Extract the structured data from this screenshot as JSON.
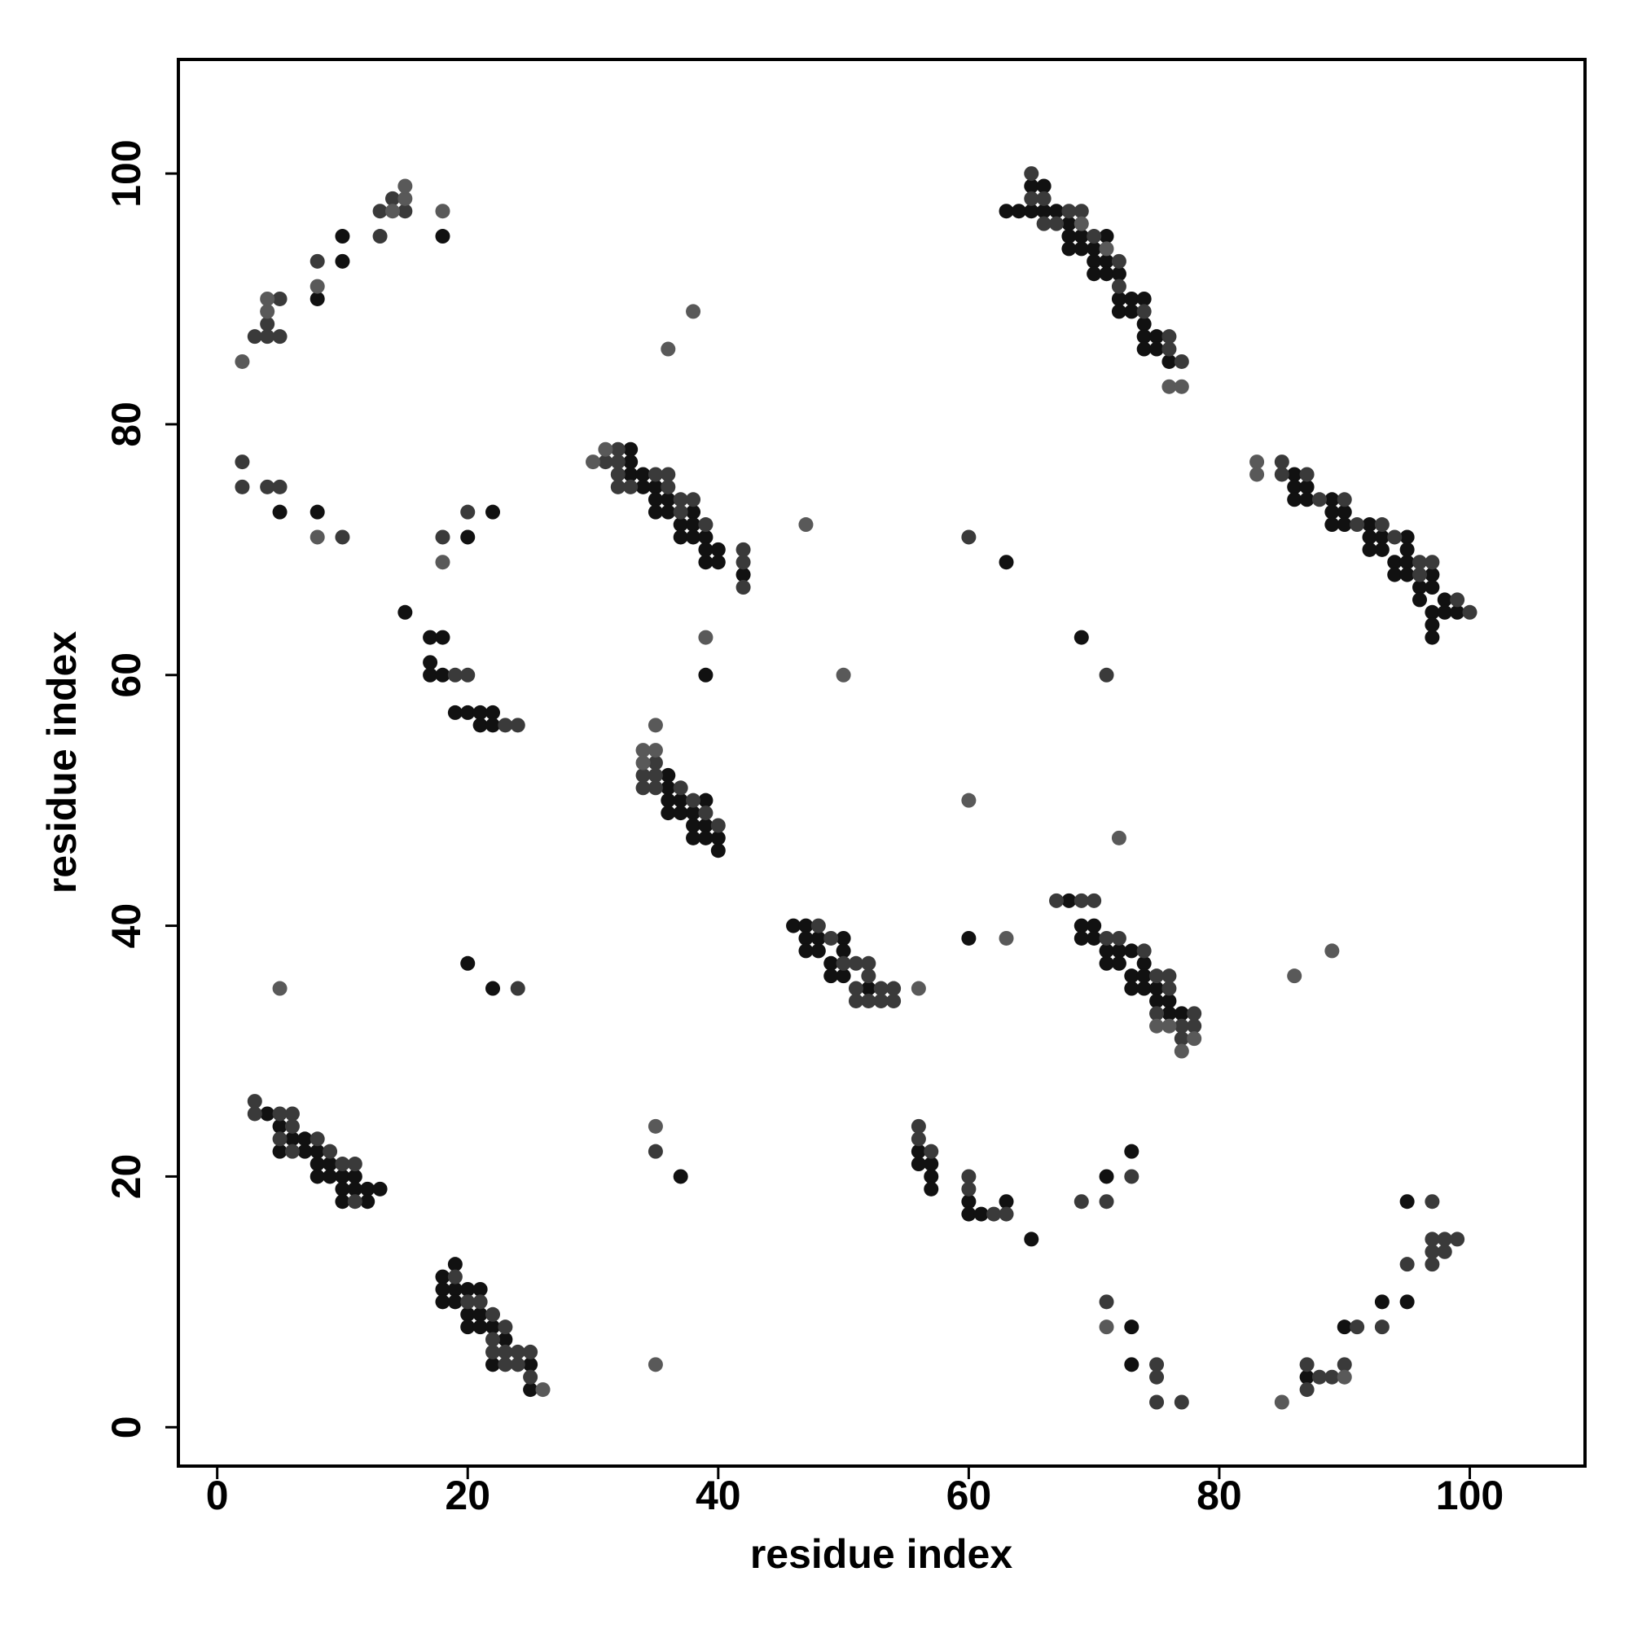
{
  "chart_data": {
    "type": "scatter",
    "xlabel": "residue index",
    "ylabel": "residue index",
    "xlim": [
      -3.1,
      109.2
    ],
    "ylim": [
      -3.1,
      109.1
    ],
    "xticks": [
      0,
      20,
      40,
      60,
      80,
      100
    ],
    "yticks": [
      0,
      20,
      40,
      60,
      80,
      100
    ],
    "series": [
      {
        "color": "#111111",
        "x": [
          8,
          10,
          10,
          18,
          5,
          8,
          20,
          22,
          15,
          17,
          18,
          17,
          17,
          18,
          19,
          20,
          21,
          21,
          22,
          22,
          33,
          33,
          33,
          34,
          34,
          35,
          35,
          35,
          36,
          36,
          37,
          37,
          38,
          38,
          38,
          39,
          39,
          39,
          40,
          40,
          42,
          39,
          63,
          69,
          63,
          64,
          65,
          65,
          66,
          66,
          67,
          68,
          68,
          68,
          69,
          69,
          70,
          70,
          70,
          71,
          71,
          71,
          72,
          72,
          72,
          73,
          73,
          74,
          74,
          74,
          74,
          75,
          75,
          76,
          86,
          86,
          86,
          87,
          87,
          89,
          89,
          89,
          90,
          90,
          92,
          92,
          92,
          93,
          93,
          94,
          94,
          95,
          95,
          95,
          95,
          96,
          96,
          97,
          97,
          97,
          97,
          97,
          98,
          98,
          99,
          36,
          36,
          36,
          37,
          39,
          36,
          37,
          38,
          38,
          39,
          38,
          39,
          40,
          40,
          46,
          47,
          47,
          47,
          48,
          48,
          49,
          49,
          50,
          50,
          50,
          52,
          68,
          69,
          69,
          70,
          70,
          71,
          71,
          72,
          72,
          73,
          73,
          73,
          74,
          74,
          74,
          75,
          75,
          76,
          76,
          77,
          60,
          20,
          22,
          4,
          5,
          5,
          6,
          7,
          7,
          8,
          8,
          8,
          9,
          9,
          10,
          10,
          10,
          11,
          11,
          12,
          12,
          13,
          37,
          56,
          56,
          57,
          57,
          57,
          60,
          60,
          61,
          63,
          65,
          71,
          73,
          95,
          95,
          93,
          90,
          87,
          73,
          73,
          18,
          18,
          18,
          19,
          19,
          19,
          20,
          20,
          20,
          21,
          21,
          21,
          22,
          22,
          23,
          25,
          25
        ],
        "values": [
          90,
          93,
          95,
          95,
          73,
          73,
          71,
          73,
          65,
          63,
          63,
          61,
          60,
          60,
          57,
          57,
          57,
          56,
          57,
          56,
          78,
          77,
          76,
          76,
          75,
          75,
          74,
          73,
          74,
          73,
          72,
          71,
          73,
          72,
          71,
          71,
          70,
          69,
          70,
          69,
          68,
          60,
          69,
          63,
          97,
          97,
          99,
          97,
          99,
          97,
          97,
          96,
          95,
          94,
          95,
          94,
          94,
          93,
          92,
          95,
          93,
          92,
          92,
          90,
          89,
          90,
          89,
          90,
          88,
          87,
          86,
          87,
          86,
          85,
          76,
          75,
          74,
          75,
          74,
          74,
          73,
          72,
          73,
          72,
          72,
          71,
          70,
          71,
          70,
          69,
          68,
          71,
          70,
          69,
          68,
          67,
          66,
          68,
          67,
          65,
          64,
          63,
          66,
          65,
          65,
          52,
          51,
          50,
          50,
          50,
          49,
          49,
          49,
          48,
          48,
          47,
          47,
          47,
          46,
          40,
          40,
          39,
          38,
          39,
          38,
          37,
          36,
          39,
          38,
          36,
          35,
          42,
          40,
          39,
          40,
          39,
          38,
          37,
          38,
          37,
          38,
          36,
          35,
          37,
          36,
          35,
          35,
          34,
          34,
          33,
          33,
          39,
          37,
          35,
          25,
          24,
          22,
          23,
          23,
          22,
          22,
          21,
          20,
          21,
          20,
          20,
          19,
          18,
          20,
          19,
          19,
          18,
          19,
          20,
          22,
          21,
          21,
          20,
          19,
          18,
          17,
          17,
          18,
          15,
          20,
          22,
          18,
          10,
          10,
          8,
          4,
          8,
          5,
          12,
          11,
          10,
          13,
          11,
          10,
          11,
          9,
          8,
          11,
          9,
          8,
          8,
          5,
          7,
          5,
          3
        ]
      },
      {
        "color": "#3a3a3a",
        "x": [
          3,
          4,
          4,
          5,
          5,
          13,
          13,
          14,
          15,
          8,
          2,
          2,
          4,
          5,
          10,
          18,
          20,
          19,
          20,
          23,
          24,
          31,
          32,
          32,
          32,
          32,
          33,
          35,
          36,
          36,
          37,
          37,
          38,
          39,
          42,
          42,
          42,
          60,
          71,
          65,
          65,
          66,
          66,
          67,
          68,
          69,
          70,
          72,
          72,
          74,
          76,
          76,
          77,
          85,
          85,
          87,
          88,
          90,
          91,
          93,
          94,
          96,
          96,
          97,
          99,
          100,
          35,
          34,
          35,
          34,
          35,
          37,
          38,
          39,
          40,
          48,
          49,
          50,
          51,
          51,
          51,
          52,
          52,
          52,
          53,
          53,
          54,
          54,
          67,
          69,
          70,
          71,
          72,
          74,
          75,
          75,
          76,
          76,
          77,
          77,
          78,
          78,
          24,
          3,
          3,
          5,
          5,
          6,
          6,
          6,
          8,
          9,
          10,
          11,
          11,
          35,
          56,
          56,
          57,
          60,
          60,
          62,
          63,
          69,
          71,
          73,
          97,
          97,
          97,
          97,
          98,
          98,
          99,
          95,
          93,
          91,
          90,
          89,
          88,
          87,
          87,
          71,
          75,
          75,
          75,
          77,
          19,
          20,
          21,
          22,
          22,
          22,
          23,
          23,
          23,
          24,
          24,
          25,
          25
        ],
        "values": [
          87,
          87,
          88,
          90,
          87,
          95,
          97,
          98,
          97,
          93,
          77,
          75,
          75,
          75,
          71,
          71,
          73,
          60,
          60,
          56,
          56,
          77,
          78,
          77,
          76,
          75,
          75,
          76,
          76,
          75,
          74,
          73,
          74,
          72,
          70,
          69,
          67,
          71,
          60,
          100,
          98,
          98,
          96,
          96,
          97,
          97,
          95,
          93,
          91,
          89,
          87,
          86,
          85,
          77,
          76,
          76,
          74,
          74,
          72,
          72,
          71,
          69,
          68,
          69,
          66,
          65,
          53,
          52,
          52,
          51,
          51,
          51,
          50,
          49,
          48,
          40,
          39,
          37,
          37,
          35,
          34,
          37,
          36,
          34,
          35,
          34,
          35,
          34,
          42,
          42,
          42,
          39,
          39,
          38,
          36,
          33,
          36,
          35,
          32,
          31,
          33,
          32,
          35,
          26,
          25,
          25,
          23,
          25,
          24,
          22,
          23,
          22,
          21,
          21,
          18,
          22,
          24,
          23,
          22,
          20,
          19,
          17,
          17,
          18,
          18,
          20,
          18,
          15,
          14,
          13,
          15,
          14,
          15,
          13,
          8,
          8,
          5,
          4,
          4,
          5,
          3,
          10,
          5,
          4,
          2,
          2,
          12,
          10,
          10,
          9,
          7,
          6,
          8,
          6,
          5,
          6,
          5,
          6,
          4
        ]
      },
      {
        "color": "#595959",
        "x": [
          2,
          4,
          4,
          8,
          14,
          15,
          15,
          18,
          8,
          18,
          30,
          31,
          36,
          38,
          47,
          39,
          50,
          69,
          71,
          76,
          77,
          83,
          83,
          35,
          34,
          35,
          34,
          60,
          72,
          56,
          75,
          76,
          77,
          78,
          63,
          86,
          89,
          5,
          35,
          90,
          85,
          71,
          26,
          35
        ],
        "values": [
          85,
          89,
          90,
          91,
          97,
          98,
          99,
          97,
          71,
          69,
          77,
          78,
          86,
          89,
          72,
          63,
          60,
          96,
          94,
          83,
          83,
          77,
          76,
          56,
          54,
          54,
          53,
          50,
          47,
          35,
          32,
          32,
          30,
          31,
          39,
          36,
          38,
          35,
          24,
          4,
          2,
          8,
          3,
          5
        ]
      }
    ]
  }
}
